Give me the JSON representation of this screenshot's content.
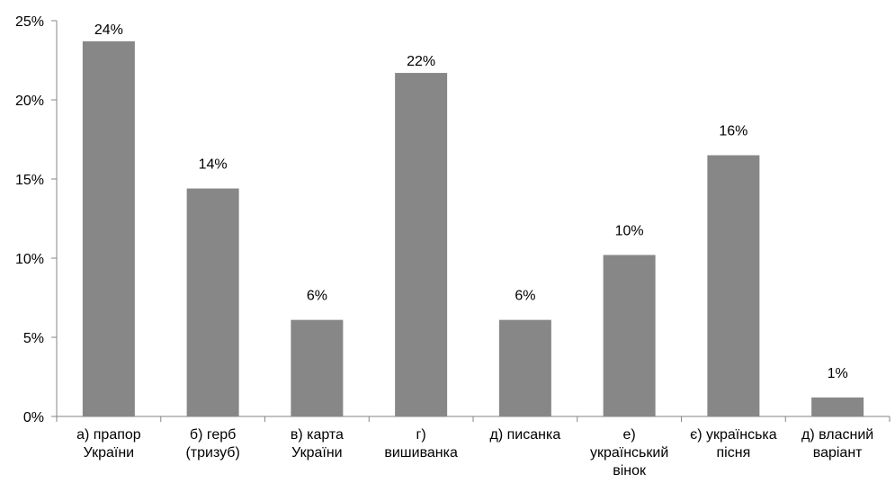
{
  "chart_data": {
    "type": "bar",
    "title": "",
    "xlabel": "",
    "ylabel": "",
    "categories": [
      [
        "а) прапор",
        "України"
      ],
      [
        "б) герб",
        "(тризуб)"
      ],
      [
        "в) карта",
        "України"
      ],
      [
        "г)",
        "вишиванка"
      ],
      [
        "д) писанка"
      ],
      [
        "е)",
        "український",
        "вінок"
      ],
      [
        "є) українська",
        "пісня"
      ],
      [
        "д) власний",
        "варіант"
      ]
    ],
    "values": [
      23.7,
      14.4,
      6.1,
      21.7,
      6.1,
      10.2,
      16.5,
      1.2
    ],
    "data_labels": [
      "24%",
      "14%",
      "6%",
      "22%",
      "6%",
      "10%",
      "16%",
      "1%"
    ],
    "ylim": [
      0,
      25
    ],
    "yticks": [
      0,
      5,
      10,
      15,
      20,
      25
    ],
    "ytick_labels": [
      "0%",
      "5%",
      "10%",
      "15%",
      "20%",
      "25%"
    ],
    "grid": false,
    "legend": "none",
    "bar_color": "#878787",
    "axis_color": "#868686"
  }
}
